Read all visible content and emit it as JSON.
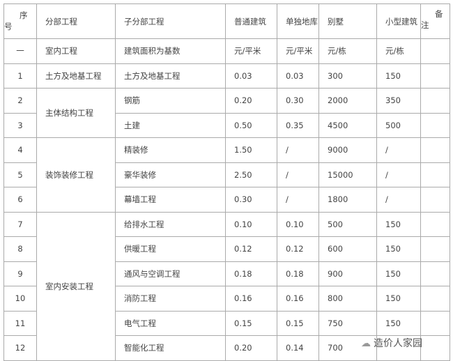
{
  "header": {
    "seq_a": "序",
    "seq_b": "号",
    "division": "分部工程",
    "subdivision": "子分部工程",
    "c1": "普通建筑",
    "c2": "单独地库",
    "c3": "别墅",
    "c4": "小型建筑",
    "note_a": "备",
    "note_b": "注"
  },
  "section": {
    "seq": "一",
    "division": "室内工程",
    "subdivision": "建筑面积为基数",
    "c1": "元/平米",
    "c2": "元/平米",
    "c3": "元/栋",
    "c4": "元/栋"
  },
  "rows": [
    {
      "seq": "1",
      "division": "土方及地基工程",
      "sub": "土方及地基工程",
      "c1": "0.03",
      "c2": "0.03",
      "c3": "300",
      "c4": "150"
    },
    {
      "seq": "2",
      "division": "主体结构工程",
      "sub": "钢筋",
      "c1": "0.20",
      "c2": "0.30",
      "c3": "2000",
      "c4": "350"
    },
    {
      "seq": "3",
      "sub": "土建",
      "c1": "0.50",
      "c2": "0.35",
      "c3": "4500",
      "c4": "500"
    },
    {
      "seq": "4",
      "division": "装饰装修工程",
      "sub": "精装修",
      "c1": "1.50",
      "c2": "/",
      "c3": "9000",
      "c4": "/"
    },
    {
      "seq": "5",
      "sub": "豪华装修",
      "c1": "2.50",
      "c2": "/",
      "c3": "15000",
      "c4": "/"
    },
    {
      "seq": "6",
      "sub": "幕墙工程",
      "c1": "0.30",
      "c2": "/",
      "c3": "1800",
      "c4": "/"
    },
    {
      "seq": "7",
      "division": "室内安装工程",
      "sub": "给排水工程",
      "c1": "0.10",
      "c2": "0.10",
      "c3": "500",
      "c4": "150"
    },
    {
      "seq": "8",
      "sub": "供暖工程",
      "c1": "0.12",
      "c2": "0.12",
      "c3": "600",
      "c4": "150"
    },
    {
      "seq": "9",
      "sub": "通风与空调工程",
      "c1": "0.18",
      "c2": "0.18",
      "c3": "900",
      "c4": "150"
    },
    {
      "seq": "10",
      "sub": "消防工程",
      "c1": "0.16",
      "c2": "0.16",
      "c3": "800",
      "c4": "150"
    },
    {
      "seq": "11",
      "sub": "电气工程",
      "c1": "0.15",
      "c2": "0.15",
      "c3": "750",
      "c4": "150"
    },
    {
      "seq": "12",
      "sub": "智能化工程",
      "c1": "0.20",
      "c2": "0.14",
      "c3": "700",
      "c4": ""
    }
  ],
  "watermark": "造价人家园"
}
